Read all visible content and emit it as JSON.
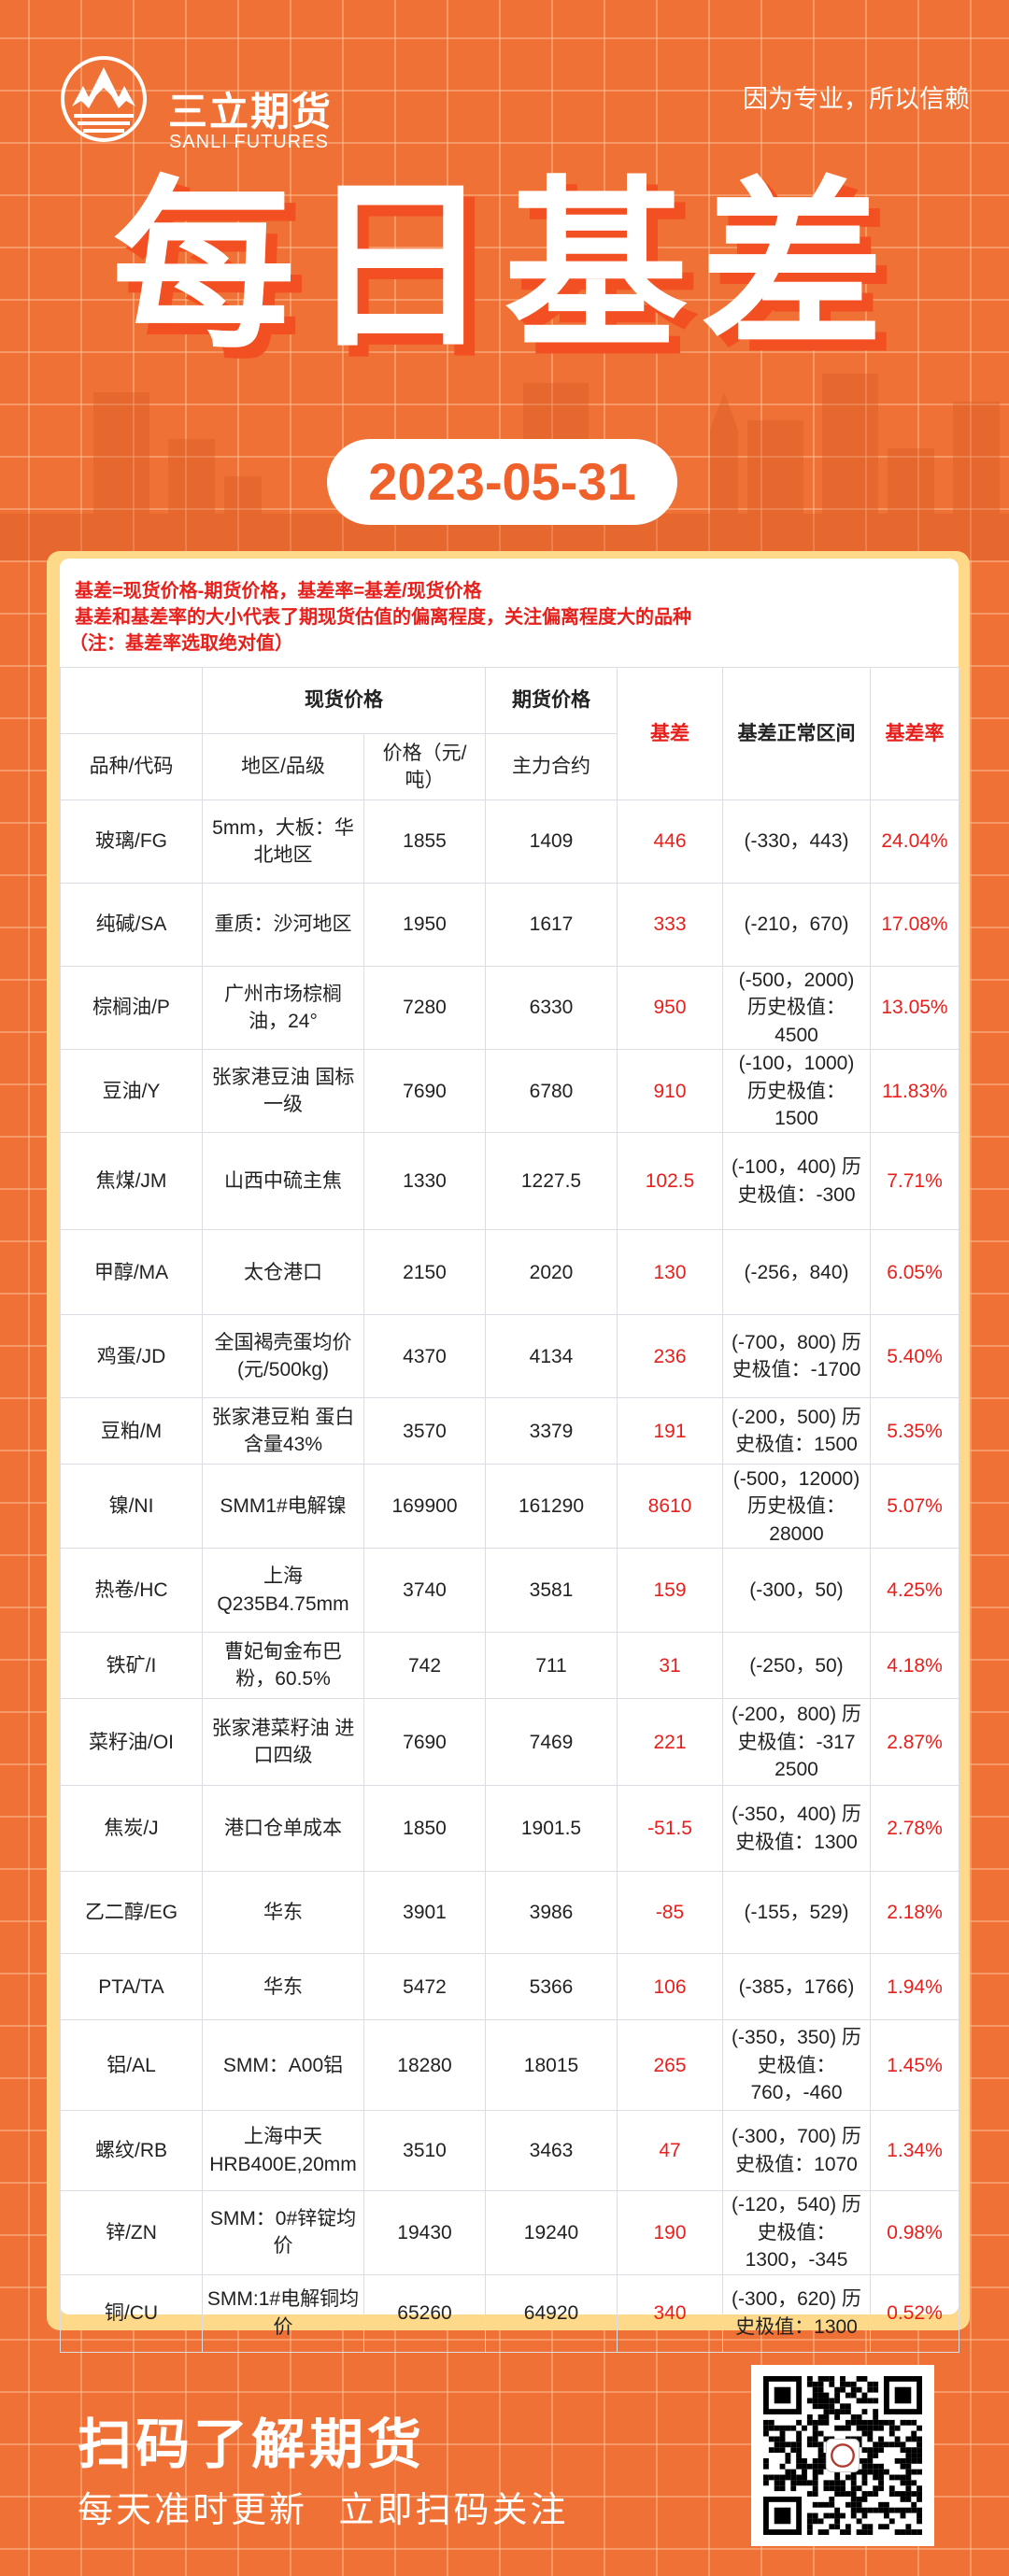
{
  "header": {
    "brand_cn": "三立期货",
    "brand_en": "SANLI FUTURES",
    "slogan": "因为专业，所以信赖",
    "title": "每日基差",
    "date": "2023-05-31"
  },
  "notes": [
    "基差=现货价格-期货价格，基差率=基差/现货价格",
    "基差和基差率的大小代表了期现货估值的偏离程度，关注偏离程度大的品种",
    "（注：基差率选取绝对值）"
  ],
  "table": {
    "group_headers": {
      "spot": "现货价格",
      "futures": "期货价格",
      "basis": "基差",
      "range": "基差正常区间",
      "rate": "基差率"
    },
    "sub_headers": {
      "product": "品种/代码",
      "region": "地区/品级",
      "price": "价格（元/吨）",
      "contract": "主力合约"
    },
    "rows": [
      {
        "product": "玻璃/FG",
        "region": "5mm，大板：华北地区",
        "spot": "1855",
        "futures": "1409",
        "basis": "446",
        "range": "(-330，443)",
        "rate": "24.04%"
      },
      {
        "product": "纯碱/SA",
        "region": "重质：沙河地区",
        "spot": "1950",
        "futures": "1617",
        "basis": "333",
        "range": "(-210，670)",
        "rate": "17.08%"
      },
      {
        "product": "棕榈油/P",
        "region": "广州市场棕榈油，24°",
        "spot": "7280",
        "futures": "6330",
        "basis": "950",
        "range": "(-500，2000) 历史极值：4500",
        "rate": "13.05%"
      },
      {
        "product": "豆油/Y",
        "region": "张家港豆油 国标一级",
        "spot": "7690",
        "futures": "6780",
        "basis": "910",
        "range": "(-100，1000) 历史极值：1500",
        "rate": "11.83%"
      },
      {
        "product": "焦煤/JM",
        "region": "山西中硫主焦",
        "spot": "1330",
        "futures": "1227.5",
        "basis": "102.5",
        "range": "(-100，400) 历史极值：-300",
        "rate": "7.71%"
      },
      {
        "product": "甲醇/MA",
        "region": "太仓港口",
        "spot": "2150",
        "futures": "2020",
        "basis": "130",
        "range": "(-256，840)",
        "rate": "6.05%"
      },
      {
        "product": "鸡蛋/JD",
        "region": "全国褐壳蛋均价(元/500kg)",
        "spot": "4370",
        "futures": "4134",
        "basis": "236",
        "range": "(-700，800) 历史极值：-1700",
        "rate": "5.40%"
      },
      {
        "product": "豆粕/M",
        "region": "张家港豆粕 蛋白含量43%",
        "spot": "3570",
        "futures": "3379",
        "basis": "191",
        "range": "(-200，500) 历史极值：1500",
        "rate": "5.35%"
      },
      {
        "product": "镍/NI",
        "region": "SMM1#电解镍",
        "spot": "169900",
        "futures": "161290",
        "basis": "8610",
        "range": "(-500，12000) 历史极值：28000",
        "rate": "5.07%"
      },
      {
        "product": "热卷/HC",
        "region": "上海 Q235B4.75mm",
        "spot": "3740",
        "futures": "3581",
        "basis": "159",
        "range": "(-300，50)",
        "rate": "4.25%"
      },
      {
        "product": "铁矿/I",
        "region": "曹妃甸金布巴粉，60.5%",
        "spot": "742",
        "futures": "711",
        "basis": "31",
        "range": "(-250，50)",
        "rate": "4.18%"
      },
      {
        "product": "菜籽油/OI",
        "region": "张家港菜籽油 进口四级",
        "spot": "7690",
        "futures": "7469",
        "basis": "221",
        "range": "(-200，800) 历史极值：-317 2500",
        "rate": "2.87%"
      },
      {
        "product": "焦炭/J",
        "region": "港口仓单成本",
        "spot": "1850",
        "futures": "1901.5",
        "basis": "-51.5",
        "range": "(-350，400) 历史极值：1300",
        "rate": "2.78%"
      },
      {
        "product": "乙二醇/EG",
        "region": "华东",
        "spot": "3901",
        "futures": "3986",
        "basis": "-85",
        "range": "(-155，529)",
        "rate": "2.18%"
      },
      {
        "product": "PTA/TA",
        "region": "华东",
        "spot": "5472",
        "futures": "5366",
        "basis": "106",
        "range": "(-385，1766)",
        "rate": "1.94%"
      },
      {
        "product": "铝/AL",
        "region": "SMM：A00铝",
        "spot": "18280",
        "futures": "18015",
        "basis": "265",
        "range": "(-350，350) 历史极值：760，-460",
        "rate": "1.45%"
      },
      {
        "product": "螺纹/RB",
        "region": "上海中天 HRB400E,20mm",
        "spot": "3510",
        "futures": "3463",
        "basis": "47",
        "range": "(-300，700) 历史极值：1070",
        "rate": "1.34%"
      },
      {
        "product": "锌/ZN",
        "region": "SMM：0#锌锭均价",
        "spot": "19430",
        "futures": "19240",
        "basis": "190",
        "range": "(-120，540) 历史极值：1300，-345",
        "rate": "0.98%"
      },
      {
        "product": "铜/CU",
        "region": "SMM:1#电解铜均价",
        "spot": "65260",
        "futures": "64920",
        "basis": "340",
        "range": "(-300，620) 历史极值：1300",
        "rate": "0.52%"
      }
    ]
  },
  "footer": {
    "title": "扫码了解期货",
    "subtitle": "每天准时更新 立即扫码关注"
  },
  "colors": {
    "background": "#ef7135",
    "accent_red": "#e8201c",
    "panel": "#ffd98a",
    "date_text": "#f0602a"
  },
  "icons": {
    "logo": "sanli-mountain-logo",
    "qr": "qr-code"
  }
}
